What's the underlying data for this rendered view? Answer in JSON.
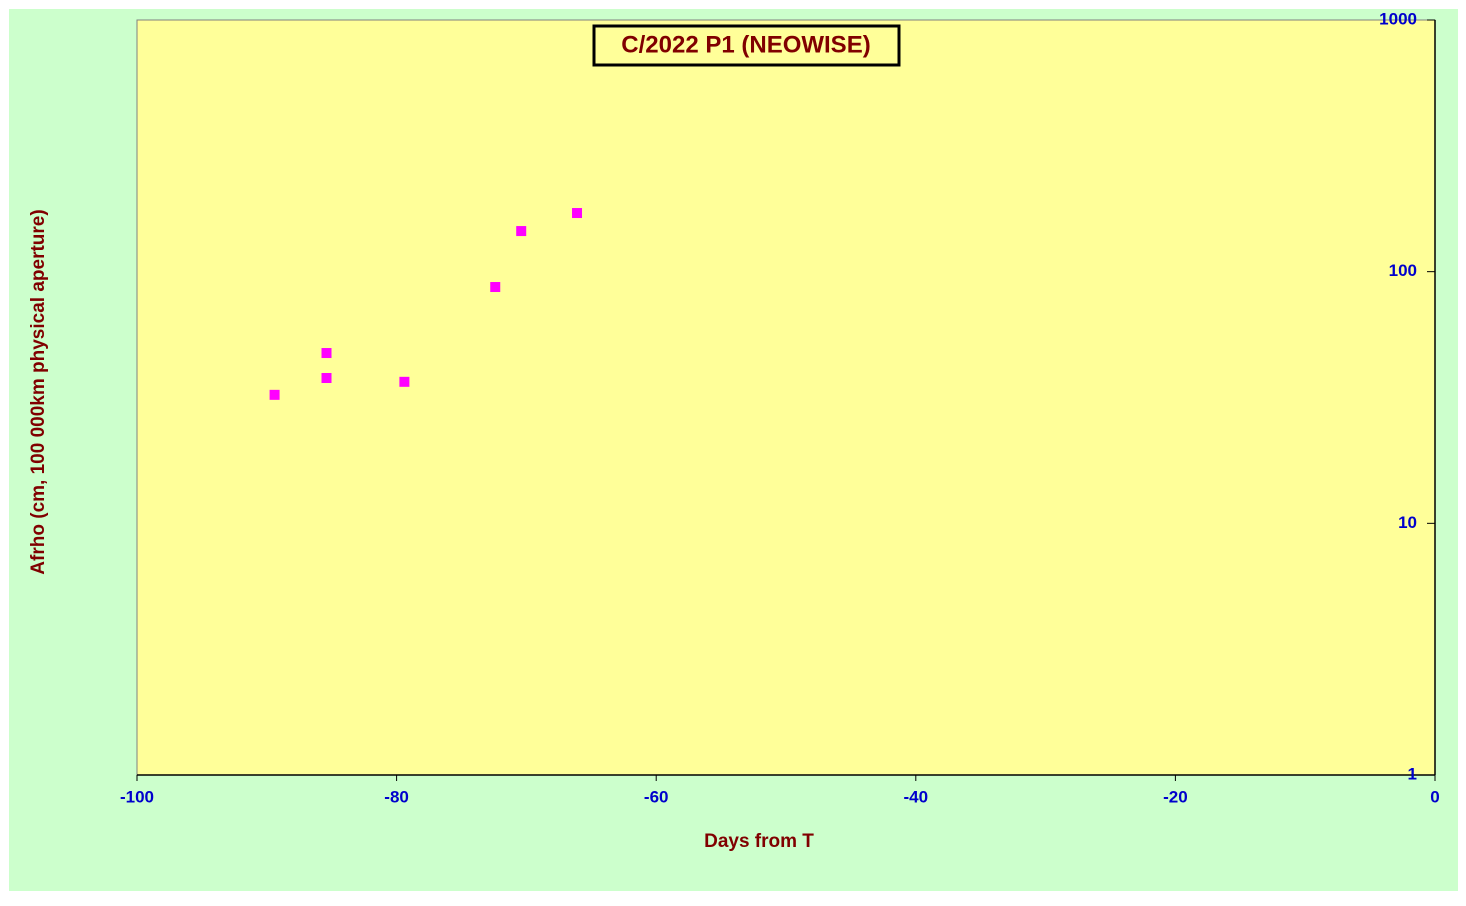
{
  "chart_data": {
    "type": "scatter",
    "title": "C/2022 P1 (NEOWISE)",
    "x_label": "Days from  T",
    "y_label": "Afrho (cm, 100 000km physical aperture)",
    "series": [
      {
        "color": "#ff00ff",
        "x": [
          -89.4,
          -85.4,
          -85.4,
          -79.4,
          -72.4,
          -70.4,
          -66.1
        ],
        "values": [
          32.4,
          47.5,
          37.8,
          36.5,
          86.9,
          145,
          171
        ]
      }
    ],
    "xlim": [
      -100,
      0
    ],
    "xticks": [
      -100,
      -80,
      -60,
      -40,
      -20,
      0
    ],
    "ylim": [
      1,
      1000
    ],
    "yticks": [
      1,
      10,
      100,
      1000
    ],
    "y_scale": "log",
    "y_axis_side": "right",
    "grid": false
  }
}
